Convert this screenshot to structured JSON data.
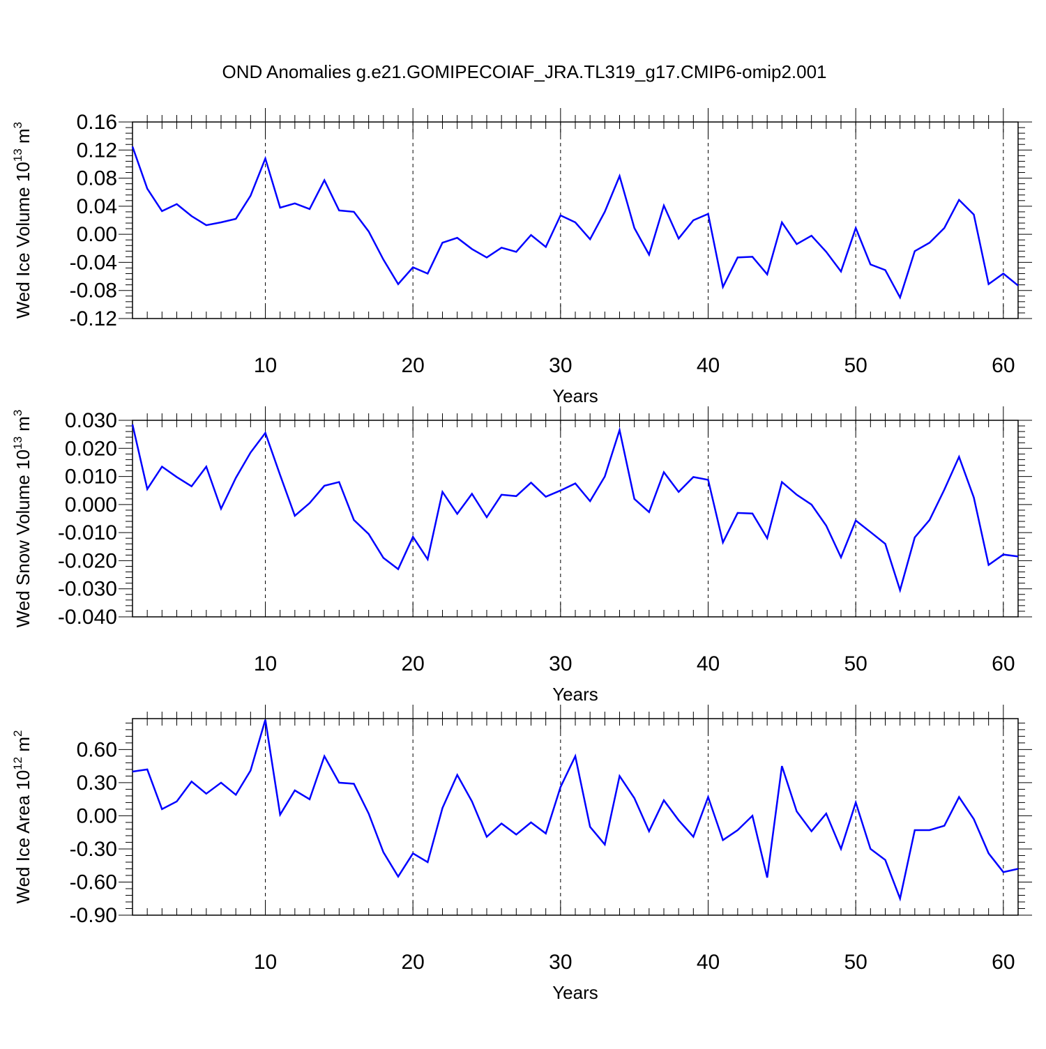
{
  "figure": {
    "title": "OND Anomalies g.e21.GOMIPECOIAF_JRA.TL319_g17.CMIP6-omip2.001"
  },
  "chart_data": [
    {
      "type": "line",
      "title": "",
      "ylabel": {
        "base": "Wed Ice Volume 10",
        "exp": "13",
        "unit": " m",
        "unit_exp": "3"
      },
      "xlabel": "Years",
      "xlim": [
        1,
        61
      ],
      "ylim": [
        -0.12,
        0.16
      ],
      "yticks": [
        -0.12,
        -0.08,
        -0.04,
        0.0,
        0.04,
        0.08,
        0.12,
        0.16
      ],
      "ytick_labels": [
        "-0.12",
        "-0.08",
        "-0.04",
        "0.00",
        "0.04",
        "0.08",
        "0.12",
        "0.16"
      ],
      "xticks": [
        10,
        20,
        30,
        40,
        50,
        60
      ],
      "xtick_labels": [
        "10",
        "20",
        "30",
        "40",
        "50",
        "60"
      ],
      "grid": "vertical dashed at major x ticks",
      "series": [
        {
          "color": "#0000ff",
          "x": [
            1,
            2,
            3,
            4,
            5,
            6,
            7,
            8,
            9,
            10,
            11,
            12,
            13,
            14,
            15,
            16,
            17,
            18,
            19,
            20,
            21,
            22,
            23,
            24,
            25,
            26,
            27,
            28,
            29,
            30,
            31,
            32,
            33,
            34,
            35,
            36,
            37,
            38,
            39,
            40,
            41,
            42,
            43,
            44,
            45,
            46,
            47,
            48,
            49,
            50,
            51,
            52,
            53,
            54,
            55,
            56,
            57,
            58,
            59,
            60,
            61
          ],
          "values": [
            0.125,
            0.065,
            0.033,
            0.043,
            0.026,
            0.013,
            0.017,
            0.022,
            0.055,
            0.108,
            0.038,
            0.044,
            0.036,
            0.077,
            0.034,
            0.032,
            0.004,
            -0.036,
            -0.071,
            -0.047,
            -0.056,
            -0.012,
            -0.005,
            -0.021,
            -0.033,
            -0.019,
            -0.025,
            -0.001,
            -0.018,
            0.027,
            0.017,
            -0.007,
            0.032,
            0.083,
            0.009,
            -0.029,
            0.041,
            -0.006,
            0.02,
            0.029,
            -0.075,
            -0.033,
            -0.032,
            -0.057,
            0.017,
            -0.014,
            -0.002,
            -0.025,
            -0.053,
            0.009,
            -0.043,
            -0.051,
            -0.09,
            -0.024,
            -0.012,
            0.009,
            0.049,
            0.028,
            -0.071,
            -0.056,
            -0.073
          ]
        }
      ]
    },
    {
      "type": "line",
      "title": "",
      "ylabel": {
        "base": "Wed Snow Volume 10",
        "exp": "13",
        "unit": " m",
        "unit_exp": "3"
      },
      "xlabel": "Years",
      "xlim": [
        1,
        61
      ],
      "ylim": [
        -0.04,
        0.03
      ],
      "yticks": [
        -0.04,
        -0.03,
        -0.02,
        -0.01,
        0.0,
        0.01,
        0.02,
        0.03
      ],
      "ytick_labels": [
        "-0.040",
        "-0.030",
        "-0.020",
        "-0.010",
        "0.000",
        "0.010",
        "0.020",
        "0.030"
      ],
      "xticks": [
        10,
        20,
        30,
        40,
        50,
        60
      ],
      "xtick_labels": [
        "10",
        "20",
        "30",
        "40",
        "50",
        "60"
      ],
      "grid": "vertical dashed at major x ticks",
      "series": [
        {
          "color": "#0000ff",
          "x": [
            1,
            2,
            3,
            4,
            5,
            6,
            7,
            8,
            9,
            10,
            11,
            12,
            13,
            14,
            15,
            16,
            17,
            18,
            19,
            20,
            21,
            22,
            23,
            24,
            25,
            26,
            27,
            28,
            29,
            30,
            31,
            32,
            33,
            34,
            35,
            36,
            37,
            38,
            39,
            40,
            41,
            42,
            43,
            44,
            45,
            46,
            47,
            48,
            49,
            50,
            51,
            52,
            53,
            54,
            55,
            56,
            57,
            58,
            59,
            60,
            61
          ],
          "values": [
            0.0285,
            0.0055,
            0.0135,
            0.0098,
            0.0065,
            0.0135,
            -0.0015,
            0.0095,
            0.0185,
            0.0255,
            0.0105,
            -0.004,
            0.0005,
            0.0067,
            0.008,
            -0.0055,
            -0.0105,
            -0.019,
            -0.023,
            -0.0115,
            -0.0195,
            0.0045,
            -0.0033,
            0.0038,
            -0.0045,
            0.0035,
            0.003,
            0.0078,
            0.0028,
            0.005,
            0.0075,
            0.0012,
            0.01,
            0.0265,
            0.002,
            -0.0027,
            0.0115,
            0.0045,
            0.0098,
            0.0088,
            -0.0135,
            -0.003,
            -0.0032,
            -0.012,
            0.008,
            0.0035,
            0.0,
            -0.0075,
            -0.0188,
            -0.0057,
            -0.0098,
            -0.014,
            -0.0305,
            -0.0117,
            -0.0055,
            0.0053,
            0.017,
            0.0025,
            -0.0215,
            -0.0178,
            -0.0185
          ]
        }
      ]
    },
    {
      "type": "line",
      "title": "",
      "ylabel": {
        "base": "Wed Ice Area 10",
        "exp": "12",
        "unit": " m",
        "unit_exp": "2"
      },
      "xlabel": "Years",
      "xlim": [
        1,
        61
      ],
      "ylim": [
        -0.9,
        0.88
      ],
      "yticks": [
        -0.9,
        -0.6,
        -0.3,
        0.0,
        0.3,
        0.6
      ],
      "ytick_labels": [
        "-0.90",
        "-0.60",
        "-0.30",
        "0.00",
        "0.30",
        "0.60"
      ],
      "xticks": [
        10,
        20,
        30,
        40,
        50,
        60
      ],
      "xtick_labels": [
        "10",
        "20",
        "30",
        "40",
        "50",
        "60"
      ],
      "grid": "vertical dashed at major x ticks",
      "series": [
        {
          "color": "#0000ff",
          "x": [
            1,
            2,
            3,
            4,
            5,
            6,
            7,
            8,
            9,
            10,
            11,
            12,
            13,
            14,
            15,
            16,
            17,
            18,
            19,
            20,
            21,
            22,
            23,
            24,
            25,
            26,
            27,
            28,
            29,
            30,
            31,
            32,
            33,
            34,
            35,
            36,
            37,
            38,
            39,
            40,
            41,
            42,
            43,
            44,
            45,
            46,
            47,
            48,
            49,
            50,
            51,
            52,
            53,
            54,
            55,
            56,
            57,
            58,
            59,
            60,
            61
          ],
          "values": [
            0.4,
            0.42,
            0.06,
            0.13,
            0.31,
            0.2,
            0.3,
            0.19,
            0.41,
            0.87,
            0.01,
            0.23,
            0.15,
            0.54,
            0.3,
            0.29,
            0.02,
            -0.33,
            -0.55,
            -0.34,
            -0.42,
            0.07,
            0.37,
            0.13,
            -0.19,
            -0.07,
            -0.17,
            -0.06,
            -0.16,
            0.26,
            0.54,
            -0.1,
            -0.26,
            0.36,
            0.16,
            -0.14,
            0.14,
            -0.04,
            -0.19,
            0.17,
            -0.22,
            -0.13,
            0.0,
            -0.56,
            0.45,
            0.04,
            -0.14,
            0.02,
            -0.3,
            0.12,
            -0.3,
            -0.4,
            -0.75,
            -0.13,
            -0.13,
            -0.09,
            0.17,
            -0.03,
            -0.34,
            -0.51,
            -0.48
          ]
        }
      ]
    }
  ]
}
